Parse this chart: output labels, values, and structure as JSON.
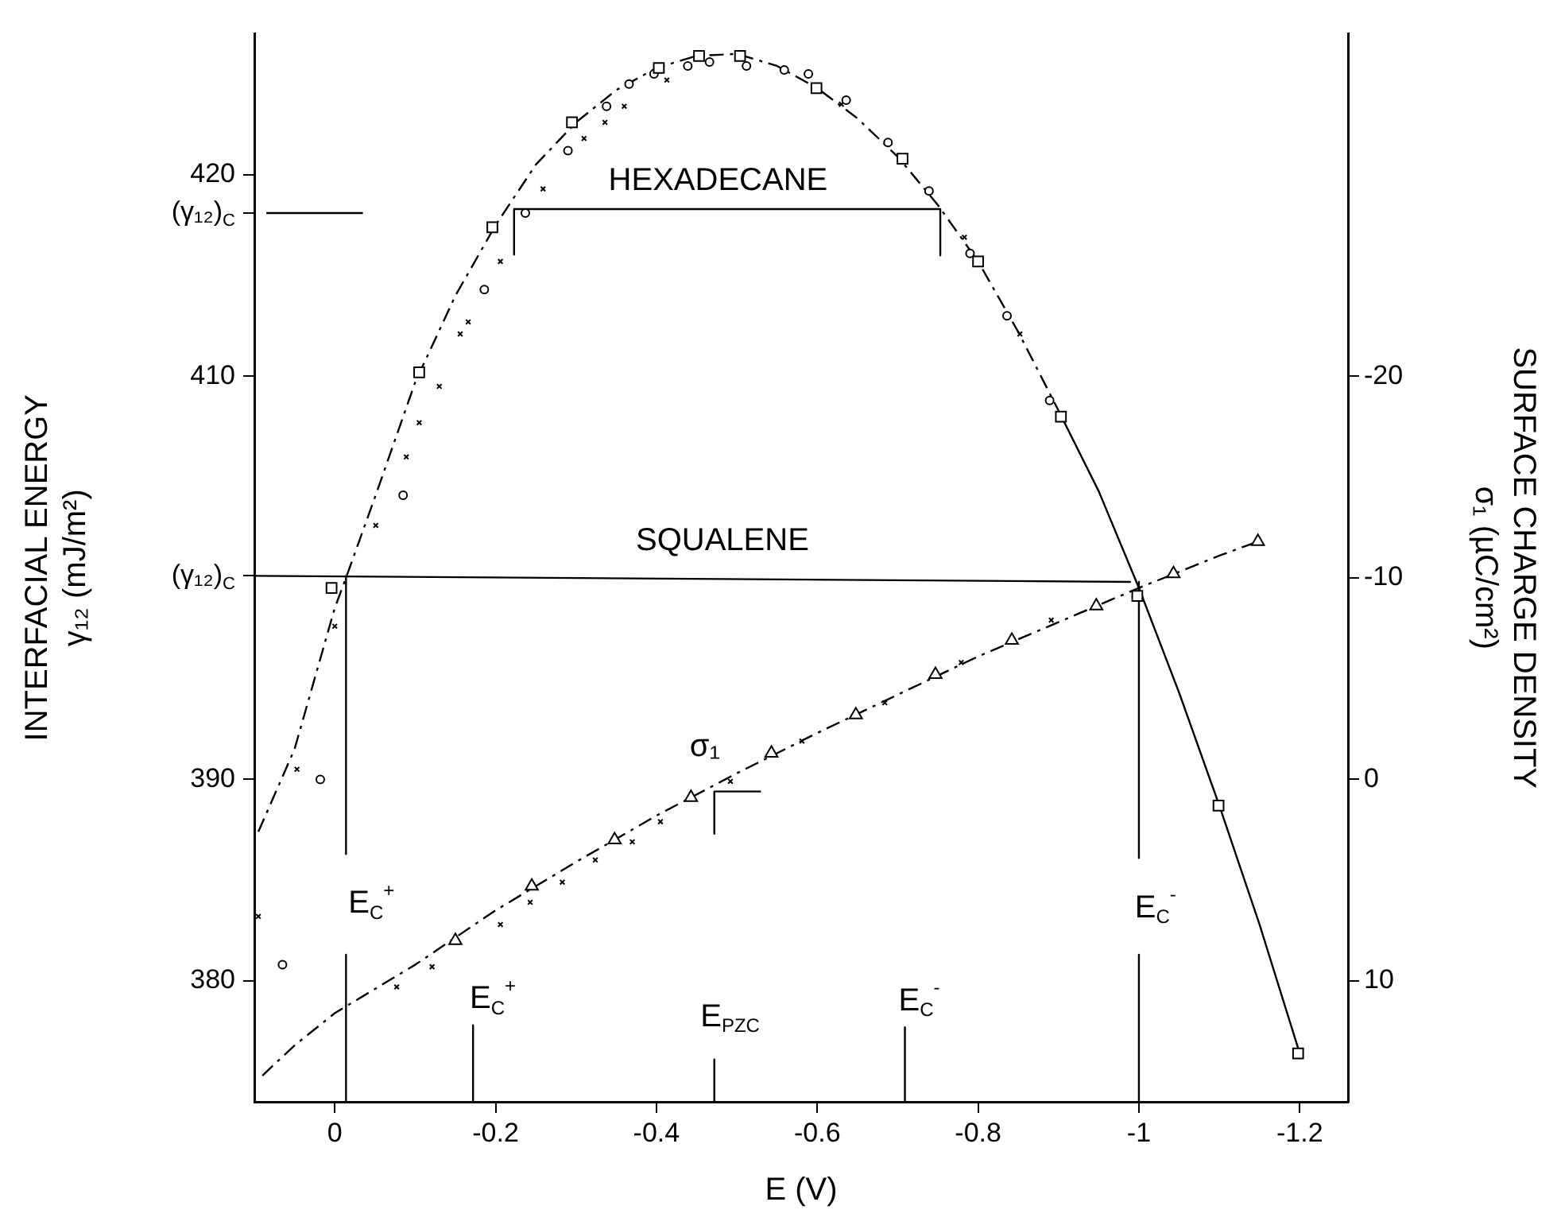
{
  "chart_data": {
    "type": "scatter",
    "xlabel": "E (V)",
    "ylabel": "INTERFACIAL ENERGY\nγ₁₂ (mJ/m²)",
    "y2label": "SURFACE CHARGE DENSITY\nσ₁ (µC/cm²)",
    "xlim": [
      0.1,
      -1.26
    ],
    "xticks": [
      0,
      -0.2,
      -0.4,
      -0.6,
      -0.8,
      -1.0,
      -1.2
    ],
    "ylim": [
      374,
      427
    ],
    "yticks": [
      380,
      390,
      {
        "value": 400.1,
        "label": "(γ₁₂)$_{C}$"
      },
      410,
      {
        "value": 418.1,
        "label": "(γ₁₂)$_{C}$"
      },
      420
    ],
    "y2lim": [
      16,
      -37
    ],
    "y2ticks": [
      -20,
      -10,
      0,
      10
    ],
    "series": [
      {
        "type": "scatter",
        "marker": "square",
        "color": "#000000",
        "x": [
          0.004,
          -0.105,
          -0.196,
          -0.295,
          -0.403,
          -0.453,
          -0.504,
          -0.599,
          -0.706,
          -0.8,
          -0.903,
          -0.998,
          -1.099,
          -1.198
        ],
        "values": [
          399.5,
          410.2,
          417.4,
          422.6,
          425.3,
          425.9,
          425.9,
          424.3,
          420.8,
          415.7,
          408.0,
          399.1,
          388.7,
          376.4
        ]
      },
      {
        "type": "scatter",
        "marker": "circle",
        "color": "#000000",
        "x": [
          0.065,
          0.018,
          -0.085,
          -0.186,
          -0.237,
          -0.29,
          -0.338,
          -0.366,
          -0.397,
          -0.439,
          -0.466,
          -0.512,
          -0.559,
          -0.589,
          -0.636,
          -0.688,
          -0.739,
          -0.79,
          -0.836,
          -0.889
        ],
        "values": [
          380.8,
          390.0,
          404.1,
          414.3,
          418.1,
          421.2,
          423.4,
          424.5,
          425.0,
          425.4,
          425.6,
          425.4,
          425.2,
          425.0,
          423.7,
          421.6,
          419.2,
          416.1,
          413.0,
          408.8
        ]
      },
      {
        "type": "scatter",
        "marker": "cross",
        "color": "#000000",
        "x": [
          0.095,
          0.047,
          0,
          -0.051,
          -0.089,
          -0.105,
          -0.13,
          -0.156,
          -0.166,
          -0.206,
          -0.259,
          -0.31,
          -0.336,
          -0.36,
          -0.413,
          -0.63,
          -0.783,
          -0.852
        ],
        "values": [
          383.2,
          390.5,
          397.6,
          402.6,
          406.0,
          407.7,
          409.5,
          412.1,
          412.7,
          415.7,
          419.3,
          421.8,
          422.6,
          423.4,
          424.7,
          423.5,
          416.9,
          412.1
        ]
      },
      {
        "type": "line",
        "marker": "none",
        "line_style": "dashed",
        "color": "#000000",
        "x": [
          0.095,
          0.05,
          0,
          -0.014,
          -0.05,
          -0.1,
          -0.15,
          -0.2,
          -0.25,
          -0.3,
          -0.35,
          -0.4,
          -0.45,
          -0.5,
          -0.55,
          -0.6,
          -0.65,
          -0.7,
          -0.75,
          -0.8,
          -0.85,
          -0.9
        ],
        "values": [
          387.4,
          391.5,
          398.5,
          400.0,
          404.0,
          409.7,
          414.0,
          417.5,
          420.5,
          422.6,
          424.2,
          425.3,
          425.9,
          426.0,
          425.4,
          424.3,
          422.8,
          420.9,
          418.5,
          415.7,
          412.2,
          408.3
        ]
      },
      {
        "type": "line",
        "marker": "none",
        "line_style": "solid",
        "color": "#000000",
        "x": [
          -0.9,
          -0.95,
          -1.0,
          -1.05,
          -1.1,
          -1.15,
          -1.2
        ],
        "values": [
          408.3,
          404.3,
          399.5,
          394.3,
          388.7,
          382.8,
          376.4
        ]
      },
      {
        "type": "scatter",
        "axis": "y2",
        "marker": "triangle",
        "color": "#000000",
        "x": [
          -0.15,
          -0.245,
          -0.348,
          -0.443,
          -0.543,
          -0.648,
          -0.747,
          -0.842,
          -0.947,
          -1.043,
          -1.148
        ],
        "values": [
          8.0,
          5.3,
          3.0,
          0.9,
          -1.3,
          -3.2,
          -5.2,
          -6.9,
          -8.6,
          -10.2,
          -11.8
        ]
      },
      {
        "type": "scatter",
        "axis": "y2",
        "marker": "cross",
        "color": "#000000",
        "x": [
          -0.077,
          -0.121,
          -0.206,
          -0.243,
          -0.283,
          -0.324,
          -0.37,
          -0.405,
          -0.492,
          -0.581,
          -0.684,
          -0.779,
          -0.891
        ],
        "values": [
          10.3,
          9.3,
          7.2,
          6.1,
          5.1,
          4.0,
          3.1,
          2.1,
          0.1,
          -1.9,
          -3.8,
          -5.8,
          -7.9
        ]
      },
      {
        "type": "line",
        "axis": "y2",
        "marker": "none",
        "line_style": "dashed",
        "color": "#000000",
        "x": [
          0.09,
          0.05,
          0,
          -0.1,
          -0.2,
          -0.3,
          -0.4,
          -0.5,
          -0.6,
          -0.7,
          -0.8,
          -0.9,
          -1.0,
          -1.1,
          -1.148
        ],
        "values": [
          14.7,
          13.2,
          11.6,
          9.2,
          6.5,
          4.1,
          1.8,
          -0.3,
          -2.3,
          -4.2,
          -6.1,
          -7.8,
          -9.5,
          -11.1,
          -11.8
        ]
      },
      {
        "type": "line",
        "marker": "none",
        "line_style": "solid",
        "color": "#000000",
        "x": [
          0.1,
          -0.99
        ],
        "values": [
          400.1,
          399.8
        ]
      },
      {
        "type": "line",
        "marker": "none",
        "line_style": "solid",
        "color": "#000000",
        "x": [
          0.085,
          -0.035
        ],
        "values": [
          418.1,
          418.1
        ]
      },
      {
        "type": "line",
        "marker": "none",
        "line_style": "solid",
        "color": "#000000",
        "x": [
          -0.223,
          -0.223,
          -0.753,
          -0.753
        ],
        "values": [
          416.0,
          418.3,
          418.3,
          416.0
        ]
      },
      {
        "type": "line",
        "marker": "none",
        "line_style": "solid",
        "color": "#000000",
        "x": [
          -0.014,
          -0.014
        ],
        "values": [
          400.1,
          386.3
        ]
      },
      {
        "type": "line",
        "marker": "none",
        "line_style": "solid",
        "color": "#000000",
        "x": [
          -0.014,
          -0.014
        ],
        "values": [
          381.3,
          374
        ]
      },
      {
        "type": "line",
        "marker": "none",
        "line_style": "solid",
        "color": "#000000",
        "x": [
          -1.0,
          -1.0
        ],
        "values": [
          399.8,
          386.1
        ]
      },
      {
        "type": "line",
        "marker": "none",
        "line_style": "solid",
        "color": "#000000",
        "x": [
          -1.0,
          -1.0
        ],
        "values": [
          381.3,
          374
        ]
      },
      {
        "type": "line",
        "marker": "none",
        "line_style": "solid",
        "color": "#000000",
        "x": [
          -0.172,
          -0.172
        ],
        "values": [
          377.8,
          374
        ]
      },
      {
        "type": "line",
        "marker": "none",
        "line_style": "solid",
        "color": "#000000",
        "x": [
          -0.472,
          -0.472
        ],
        "values": [
          376.1,
          374
        ]
      },
      {
        "type": "line",
        "marker": "none",
        "line_style": "solid",
        "color": "#000000",
        "x": [
          -0.709,
          -0.709
        ],
        "values": [
          377.7,
          374
        ]
      },
      {
        "type": "line",
        "marker": "none",
        "line_style": "solid",
        "color": "#000000",
        "x": [
          -0.53,
          -0.472,
          -0.472
        ],
        "values": [
          389.4,
          389.4,
          387.3
        ]
      }
    ],
    "annotations": [
      "HEXADECANE",
      "SQUALENE",
      "σ₁",
      "E$_{C}$$^{+}$",
      "E$_{C}$$^{+}$",
      "E$_{PZC}$",
      "E$_{C}$$^{-}$",
      "E$_{C}$$^{-}$"
    ]
  }
}
